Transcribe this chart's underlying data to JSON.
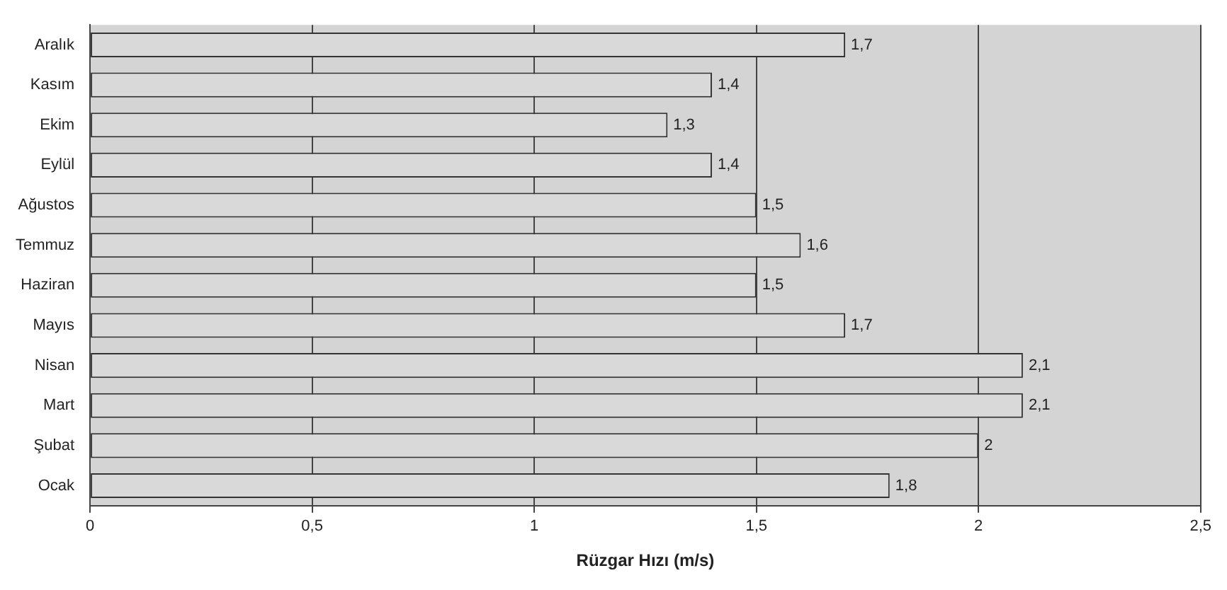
{
  "chart_data": {
    "type": "bar",
    "orientation": "horizontal",
    "xlabel": "Rüzgar Hızı (m/s)",
    "categories": [
      "Aralık",
      "Kasım",
      "Ekim",
      "Eylül",
      "Ağustos",
      "Temmuz",
      "Haziran",
      "Mayıs",
      "Nisan",
      "Mart",
      "Şubat",
      "Ocak"
    ],
    "values": [
      1.7,
      1.4,
      1.3,
      1.4,
      1.5,
      1.6,
      1.5,
      1.7,
      2.1,
      2.1,
      2,
      1.8
    ],
    "value_labels": [
      "1,7",
      "1,4",
      "1,3",
      "1,4",
      "1,5",
      "1,6",
      "1,5",
      "1,7",
      "2,1",
      "2,1",
      "2",
      "1,8"
    ],
    "color": "#d9d9d9",
    "xlim": [
      0,
      2.5
    ],
    "xticks": [
      0,
      {
        "value": 0.5,
        "label": "0,5"
      },
      1,
      {
        "value": 1.5,
        "label": "1,5"
      },
      2,
      {
        "value": 2.5,
        "label": "2,5"
      }
    ],
    "grid": "x",
    "legend": false
  }
}
